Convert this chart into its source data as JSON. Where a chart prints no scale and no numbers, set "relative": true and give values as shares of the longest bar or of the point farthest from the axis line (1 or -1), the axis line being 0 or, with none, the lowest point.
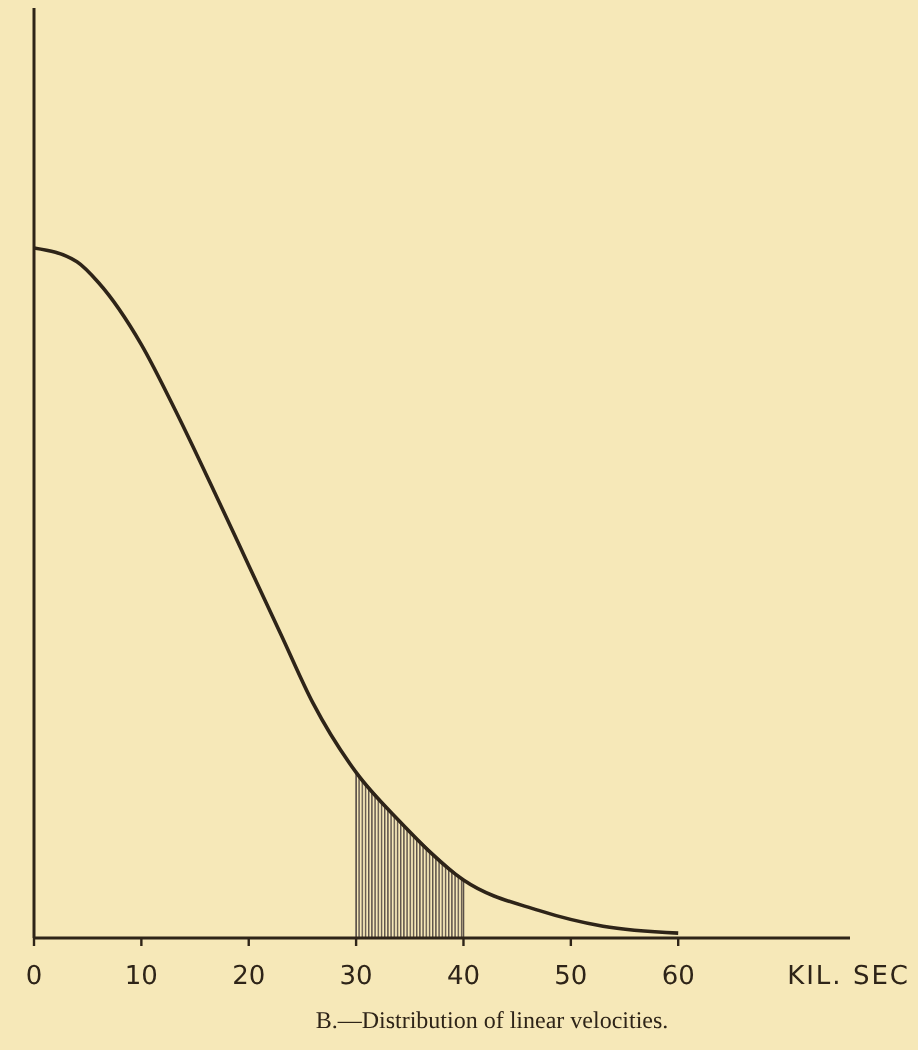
{
  "chart_data": {
    "type": "line",
    "relative": true,
    "xlabel": "KIL. SEC",
    "annotations": [
      "B.—Distribution of linear velocities."
    ],
    "x": [
      0,
      4,
      6,
      10,
      13,
      17,
      20,
      23,
      26,
      30,
      34,
      40,
      47,
      53,
      60
    ],
    "series": [
      {
        "type": "area",
        "color": "#5a5048",
        "x": [
          30,
          34,
          40
        ],
        "values": [
          0.24,
          0.17,
          0.084
        ]
      },
      {
        "color": "#2e2418",
        "values": [
          1,
          0.98,
          0.95,
          0.86,
          0.77,
          0.64,
          0.54,
          0.44,
          0.34,
          0.24,
          0.17,
          0.084,
          0.04,
          0.017,
          0.007
        ]
      }
    ],
    "xlim": [
      0,
      76
    ],
    "xticks": [
      0,
      10,
      20,
      30,
      40,
      50,
      60
    ],
    "marker": "none",
    "line_style": "solid"
  }
}
